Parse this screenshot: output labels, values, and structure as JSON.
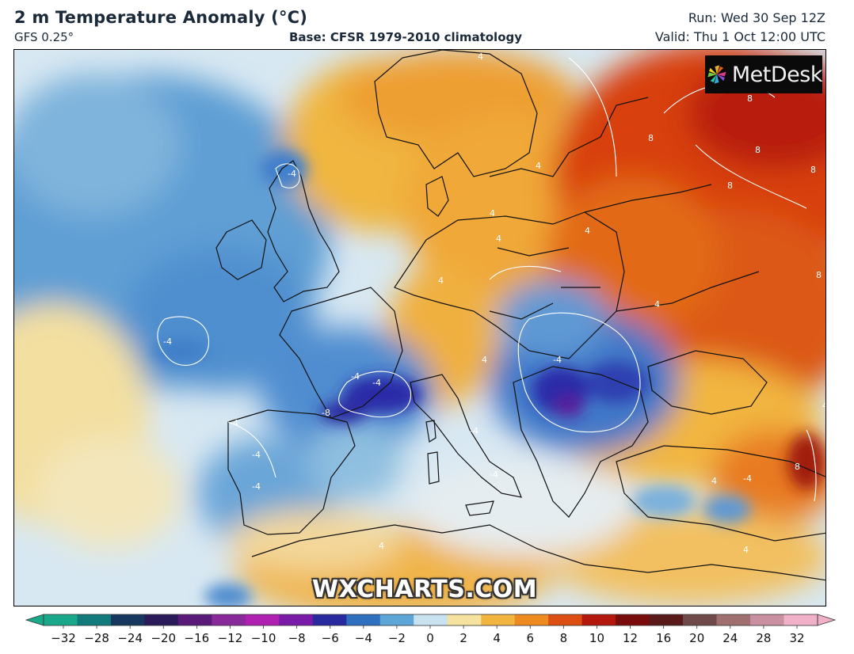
{
  "header": {
    "title": "2 m Temperature Anomaly (°C)",
    "model": "GFS 0.25°",
    "base": "Base: CFSR 1979-2010 climatology",
    "run": "Run: Wed 30 Sep 12Z",
    "valid": "Valid: Thu 1 Oct 12:00 UTC"
  },
  "logo": {
    "text": "MetDesk",
    "icon": "pinwheel-icon"
  },
  "watermark": "WXCHARTS.COM",
  "contour_labels": [
    "-4",
    "-4",
    "-4",
    "-4",
    "-8",
    "-4",
    "-4",
    "-4",
    "-4",
    "4",
    "4",
    "4",
    "4",
    "4",
    "4",
    "8",
    "8",
    "8",
    "8",
    "8",
    "8",
    "4",
    "4",
    "4",
    "4",
    "8",
    "-4",
    "-4",
    "-4",
    "4",
    "4"
  ],
  "colorbar": {
    "ticks": [
      "−32",
      "−28",
      "−24",
      "−20",
      "−16",
      "−12",
      "−10",
      "−8",
      "−6",
      "−4",
      "−2",
      "0",
      "2",
      "4",
      "6",
      "8",
      "10",
      "12",
      "16",
      "20",
      "24",
      "28",
      "32"
    ],
    "colors": [
      "#1aa88a",
      "#127a7a",
      "#17385e",
      "#2a1a5a",
      "#5a1a7a",
      "#8a2a9a",
      "#b020b0",
      "#7a1aa8",
      "#2a2aa0",
      "#2f6fbf",
      "#5ea6d8",
      "#c9e2ef",
      "#f6e3a0",
      "#f2b640",
      "#ee8a20",
      "#dc4e12",
      "#b4180c",
      "#7a0c0c",
      "#5a1a1a",
      "#6f4a4a",
      "#a07070",
      "#c890a0",
      "#f0b0c8"
    ]
  },
  "colors": {
    "header_text": "#1b2a3a",
    "ocean_cold": "#8fbfe2",
    "warm": "#f2b640",
    "hot": "#d84012"
  }
}
